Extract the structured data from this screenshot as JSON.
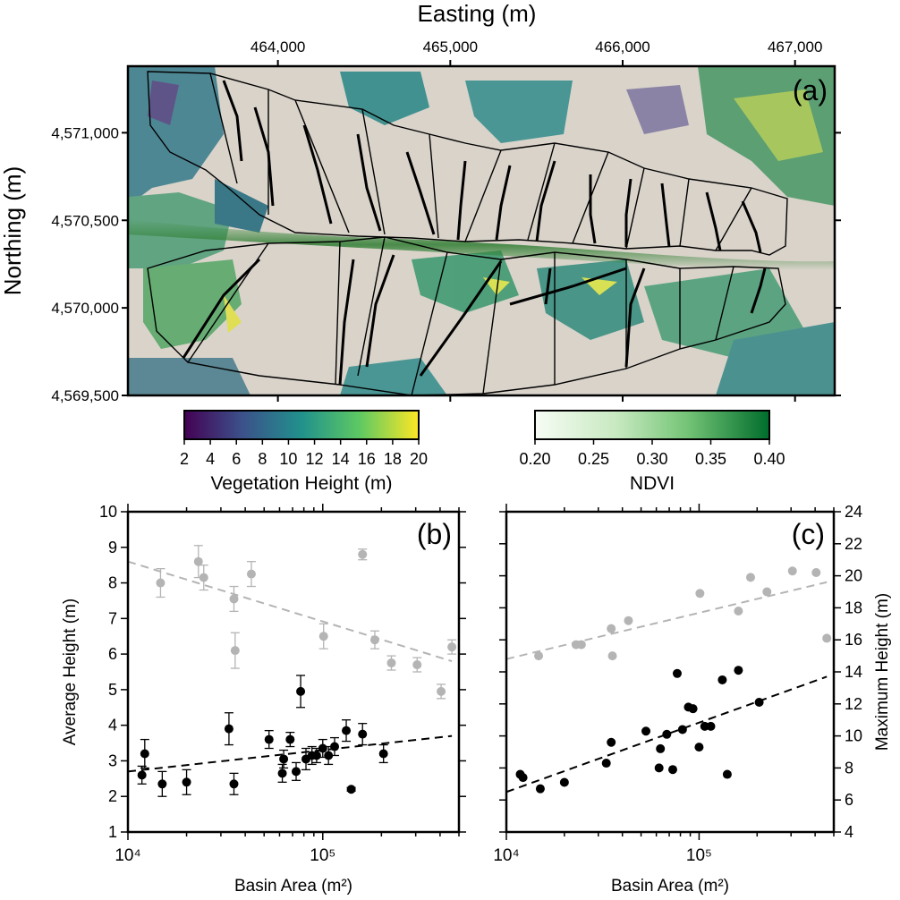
{
  "panel_a": {
    "label": "(a)",
    "x_title": "Easting (m)",
    "y_title": "Northing (m)",
    "x_ticks": [
      "464,000",
      "465,000",
      "466,000",
      "467,000"
    ],
    "y_ticks": [
      "4,571,000",
      "4,570,500",
      "4,570,000",
      "4,569,500"
    ],
    "x_tick_values": [
      464000,
      465000,
      466000,
      467000
    ],
    "y_tick_values": [
      4571000,
      4570500,
      4570000,
      4569500
    ],
    "xlim": [
      463130,
      467230
    ],
    "ylim": [
      4569500,
      4571380
    ]
  },
  "colorbars": {
    "vegetation": {
      "label": "Vegetation Height (m)",
      "ticks": [
        "2",
        "4",
        "6",
        "8",
        "10",
        "12",
        "14",
        "16",
        "18",
        "20"
      ],
      "range": [
        2,
        20
      ],
      "colormap": [
        "#440154",
        "#3b528b",
        "#21918c",
        "#5ec962",
        "#fde725"
      ]
    },
    "ndvi": {
      "label": "NDVI",
      "ticks": [
        "0.20",
        "0.25",
        "0.30",
        "0.35",
        "0.40"
      ],
      "range": [
        0.2,
        0.4
      ],
      "colormap": [
        "#f7fcf5",
        "#a1d99b",
        "#41ab5d",
        "#006d2c"
      ]
    }
  },
  "colors": {
    "series_light": "#b4b4b4",
    "series_dark": "#000000",
    "terrain": "#d8d2c8"
  },
  "chart_data": [
    {
      "panel": "(b)",
      "type": "scatter",
      "xlabel": "Basin Area (m²)",
      "ylabel": "Average Height (m)",
      "xscale": "log",
      "xlim": [
        10000,
        500000
      ],
      "ylim": [
        1,
        10
      ],
      "x_ticks": [
        "10⁴",
        "10⁵"
      ],
      "y_ticks": [
        "1",
        "2",
        "3",
        "4",
        "5",
        "6",
        "7",
        "8",
        "9",
        "10"
      ],
      "series": [
        {
          "color": "#b4b4b4",
          "points": [
            {
              "x": 14700,
              "y": 8.0,
              "err": 0.4
            },
            {
              "x": 23000,
              "y": 8.6,
              "err": 0.45
            },
            {
              "x": 24500,
              "y": 8.15,
              "err": 0.35
            },
            {
              "x": 35000,
              "y": 7.55,
              "err": 0.35
            },
            {
              "x": 35500,
              "y": 6.1,
              "err": 0.5
            },
            {
              "x": 43000,
              "y": 8.25,
              "err": 0.35
            },
            {
              "x": 101000,
              "y": 6.5,
              "err": 0.35
            },
            {
              "x": 160000,
              "y": 8.8,
              "err": 0.15
            },
            {
              "x": 185000,
              "y": 6.4,
              "err": 0.25
            },
            {
              "x": 225000,
              "y": 5.75,
              "err": 0.2
            },
            {
              "x": 305000,
              "y": 5.7,
              "err": 0.2
            },
            {
              "x": 405000,
              "y": 4.95,
              "err": 0.2
            },
            {
              "x": 460000,
              "y": 6.2,
              "err": 0.2
            }
          ],
          "trend": [
            [
              10000,
              8.6
            ],
            [
              460000,
              5.8
            ]
          ]
        },
        {
          "color": "#000000",
          "points": [
            {
              "x": 11800,
              "y": 2.6,
              "err": 0.25
            },
            {
              "x": 12200,
              "y": 3.2,
              "err": 0.4
            },
            {
              "x": 15000,
              "y": 2.35,
              "err": 0.35
            },
            {
              "x": 20000,
              "y": 2.4,
              "err": 0.35
            },
            {
              "x": 33000,
              "y": 3.9,
              "err": 0.45
            },
            {
              "x": 35000,
              "y": 2.35,
              "err": 0.3
            },
            {
              "x": 53000,
              "y": 3.6,
              "err": 0.25
            },
            {
              "x": 62000,
              "y": 2.65,
              "err": 0.25
            },
            {
              "x": 63000,
              "y": 3.05,
              "err": 0.25
            },
            {
              "x": 68000,
              "y": 3.6,
              "err": 0.2
            },
            {
              "x": 73000,
              "y": 2.7,
              "err": 0.25
            },
            {
              "x": 77000,
              "y": 4.95,
              "err": 0.45
            },
            {
              "x": 82000,
              "y": 3.05,
              "err": 0.3
            },
            {
              "x": 88000,
              "y": 3.15,
              "err": 0.25
            },
            {
              "x": 93000,
              "y": 3.15,
              "err": 0.2
            },
            {
              "x": 100000,
              "y": 3.35,
              "err": 0.25
            },
            {
              "x": 107000,
              "y": 3.15,
              "err": 0.25
            },
            {
              "x": 115000,
              "y": 3.4,
              "err": 0.25
            },
            {
              "x": 132000,
              "y": 3.85,
              "err": 0.3
            },
            {
              "x": 140000,
              "y": 2.2,
              "err": 0.05
            },
            {
              "x": 160000,
              "y": 3.75,
              "err": 0.3
            },
            {
              "x": 205000,
              "y": 3.2,
              "err": 0.25
            }
          ],
          "trend": [
            [
              10000,
              2.7
            ],
            [
              460000,
              3.7
            ]
          ]
        }
      ]
    },
    {
      "panel": "(c)",
      "type": "scatter",
      "xlabel": "Basin Area (m²)",
      "ylabel": "Maximum Height (m)",
      "xscale": "log",
      "xlim": [
        10000,
        500000
      ],
      "ylim": [
        4,
        24
      ],
      "x_ticks": [
        "10⁴",
        "10⁵"
      ],
      "y_ticks": [
        "4",
        "6",
        "8",
        "10",
        "12",
        "14",
        "16",
        "18",
        "20",
        "22",
        "24"
      ],
      "series": [
        {
          "color": "#b4b4b4",
          "points": [
            {
              "x": 14700,
              "y": 15.0
            },
            {
              "x": 23000,
              "y": 15.7
            },
            {
              "x": 24500,
              "y": 15.7
            },
            {
              "x": 35000,
              "y": 16.7
            },
            {
              "x": 35500,
              "y": 15.0
            },
            {
              "x": 43000,
              "y": 17.2
            },
            {
              "x": 101000,
              "y": 18.9
            },
            {
              "x": 160000,
              "y": 17.8
            },
            {
              "x": 185000,
              "y": 19.9
            },
            {
              "x": 225000,
              "y": 19.0
            },
            {
              "x": 305000,
              "y": 20.3
            },
            {
              "x": 405000,
              "y": 20.2
            },
            {
              "x": 460000,
              "y": 16.1
            }
          ],
          "trend": [
            [
              10000,
              14.8
            ],
            [
              460000,
              19.6
            ]
          ]
        },
        {
          "color": "#000000",
          "points": [
            {
              "x": 11800,
              "y": 7.6
            },
            {
              "x": 12200,
              "y": 7.4
            },
            {
              "x": 15000,
              "y": 6.7
            },
            {
              "x": 20000,
              "y": 7.1
            },
            {
              "x": 33000,
              "y": 8.3
            },
            {
              "x": 35000,
              "y": 9.6
            },
            {
              "x": 53000,
              "y": 10.3
            },
            {
              "x": 62000,
              "y": 8.0
            },
            {
              "x": 63000,
              "y": 9.2
            },
            {
              "x": 68000,
              "y": 10.1
            },
            {
              "x": 73000,
              "y": 7.9
            },
            {
              "x": 77000,
              "y": 13.9
            },
            {
              "x": 82000,
              "y": 10.4
            },
            {
              "x": 88000,
              "y": 11.8
            },
            {
              "x": 93000,
              "y": 11.7
            },
            {
              "x": 100000,
              "y": 9.3
            },
            {
              "x": 107000,
              "y": 10.6
            },
            {
              "x": 115000,
              "y": 10.6
            },
            {
              "x": 132000,
              "y": 13.5
            },
            {
              "x": 140000,
              "y": 7.6
            },
            {
              "x": 160000,
              "y": 14.1
            },
            {
              "x": 205000,
              "y": 12.1
            }
          ],
          "trend": [
            [
              10000,
              6.5
            ],
            [
              460000,
              13.7
            ]
          ]
        }
      ]
    }
  ]
}
